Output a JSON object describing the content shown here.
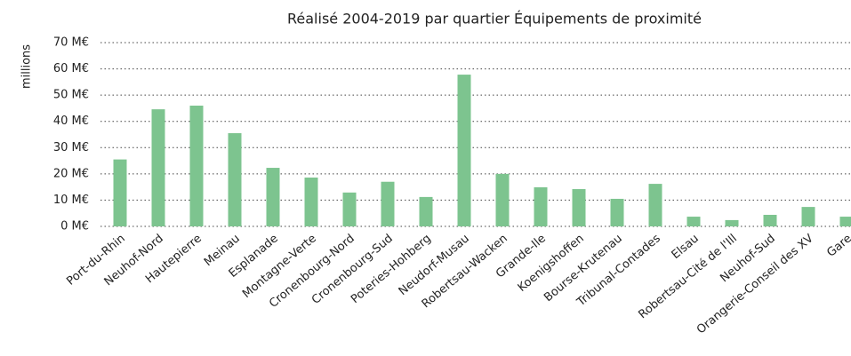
{
  "chart_data": {
    "type": "bar",
    "title": "Réalisé 2004-2019 par quartier Équipements de proximité",
    "y_label": "millions",
    "categories": [
      "Port-du-Rhin",
      "Neuhof-Nord",
      "Hautepierre",
      "Meinau",
      "Esplanade",
      "Montagne-Verte",
      "Cronenbourg-Nord",
      "Cronenbourg-Sud",
      "Poteries-Hohberg",
      "Neudorf-Musau",
      "Robertsau-Wacken",
      "Grande-Ile",
      "Koenigshoffen",
      "Bourse-Krutenau",
      "Tribunal-Contades",
      "Elsau",
      "Robertsau-Cité de l'Ill",
      "Neuhof-Sud",
      "Orangerie-Conseil des XV",
      "Gare"
    ],
    "values": [
      25.5,
      44.6,
      46,
      35.5,
      22.3,
      18.6,
      12.9,
      17,
      11.2,
      57.8,
      20,
      14.9,
      14.2,
      10.5,
      16.2,
      3.7,
      2.4,
      4.4,
      7.4,
      3.7
    ],
    "color": "#7dc48f",
    "ylim": [
      0,
      70
    ],
    "yticks": [
      {
        "value": 0,
        "label": "0 M€"
      },
      {
        "value": 10,
        "label": "10 M€"
      },
      {
        "value": 20,
        "label": "20 M€"
      },
      {
        "value": 30,
        "label": "30 M€"
      },
      {
        "value": 40,
        "label": "40 M€"
      },
      {
        "value": 50,
        "label": "50 M€"
      },
      {
        "value": 60,
        "label": "60 M€"
      },
      {
        "value": 70,
        "label": "70 M€"
      }
    ],
    "grid": true
  }
}
